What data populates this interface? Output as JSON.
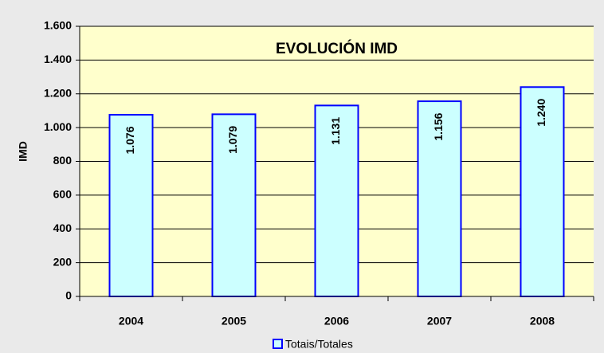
{
  "chart_data": {
    "type": "bar",
    "title": "EVOLUCIÓN IMD",
    "y_label": "IMD",
    "categories": [
      "2004",
      "2005",
      "2006",
      "2007",
      "2008"
    ],
    "series": [
      {
        "name": "Totais/Totales",
        "color": "#ccffff",
        "stroke": "#0000ff",
        "values": [
          1076,
          1079,
          1131,
          1156,
          1240
        ],
        "value_labels": [
          "1.076",
          "1.079",
          "1.131",
          "1.156",
          "1.240"
        ]
      }
    ],
    "ylim": [
      0,
      1600
    ],
    "yticks": [
      0,
      200,
      400,
      600,
      800,
      {
        "value": 1000,
        "label": "1.000"
      },
      {
        "value": 1200,
        "label": "1.200"
      },
      {
        "value": 1400,
        "label": "1.400"
      },
      {
        "value": 1600,
        "label": "1.600"
      }
    ],
    "grid": true,
    "legend": "bottom"
  }
}
